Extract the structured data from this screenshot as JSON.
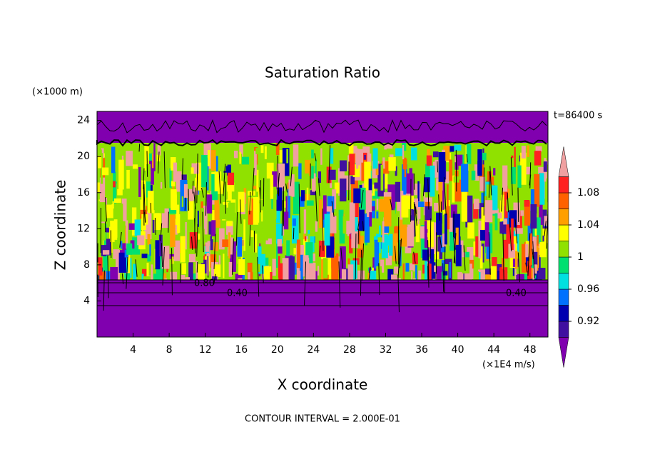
{
  "chart_data": {
    "type": "contour",
    "title": "Saturation Ratio",
    "x_label": "X coordinate",
    "y_label": "Z coordinate",
    "x_unit": "(×1E4 m/s)",
    "y_unit": "(×1000 m)",
    "time_label": "t=86400 s",
    "footer": "CONTOUR INTERVAL = 2.000E-01",
    "contour_labels": [
      "0.80",
      "0.40",
      "0.40"
    ],
    "xlim": [
      0,
      50
    ],
    "xticks": [
      4,
      8,
      12,
      16,
      20,
      24,
      28,
      32,
      36,
      40,
      44,
      48
    ],
    "ylim": [
      0,
      25
    ],
    "yticks": [
      4,
      8,
      12,
      16,
      20,
      24
    ],
    "colorbar": {
      "levels": [
        0.9,
        0.92,
        0.94,
        0.96,
        0.98,
        1,
        1.02,
        1.04,
        1.06,
        1.08,
        1.1
      ],
      "ticks": [
        0.92,
        0.96,
        1,
        1.04,
        1.08
      ],
      "colors": [
        "#8000b0",
        "#4010a0",
        "#0000b0",
        "#0070ff",
        "#00e0e0",
        "#00e070",
        "#90e000",
        "#ffff00",
        "#ffa000",
        "#ff6000",
        "#ff2020",
        "#f0a0a0"
      ]
    }
  }
}
